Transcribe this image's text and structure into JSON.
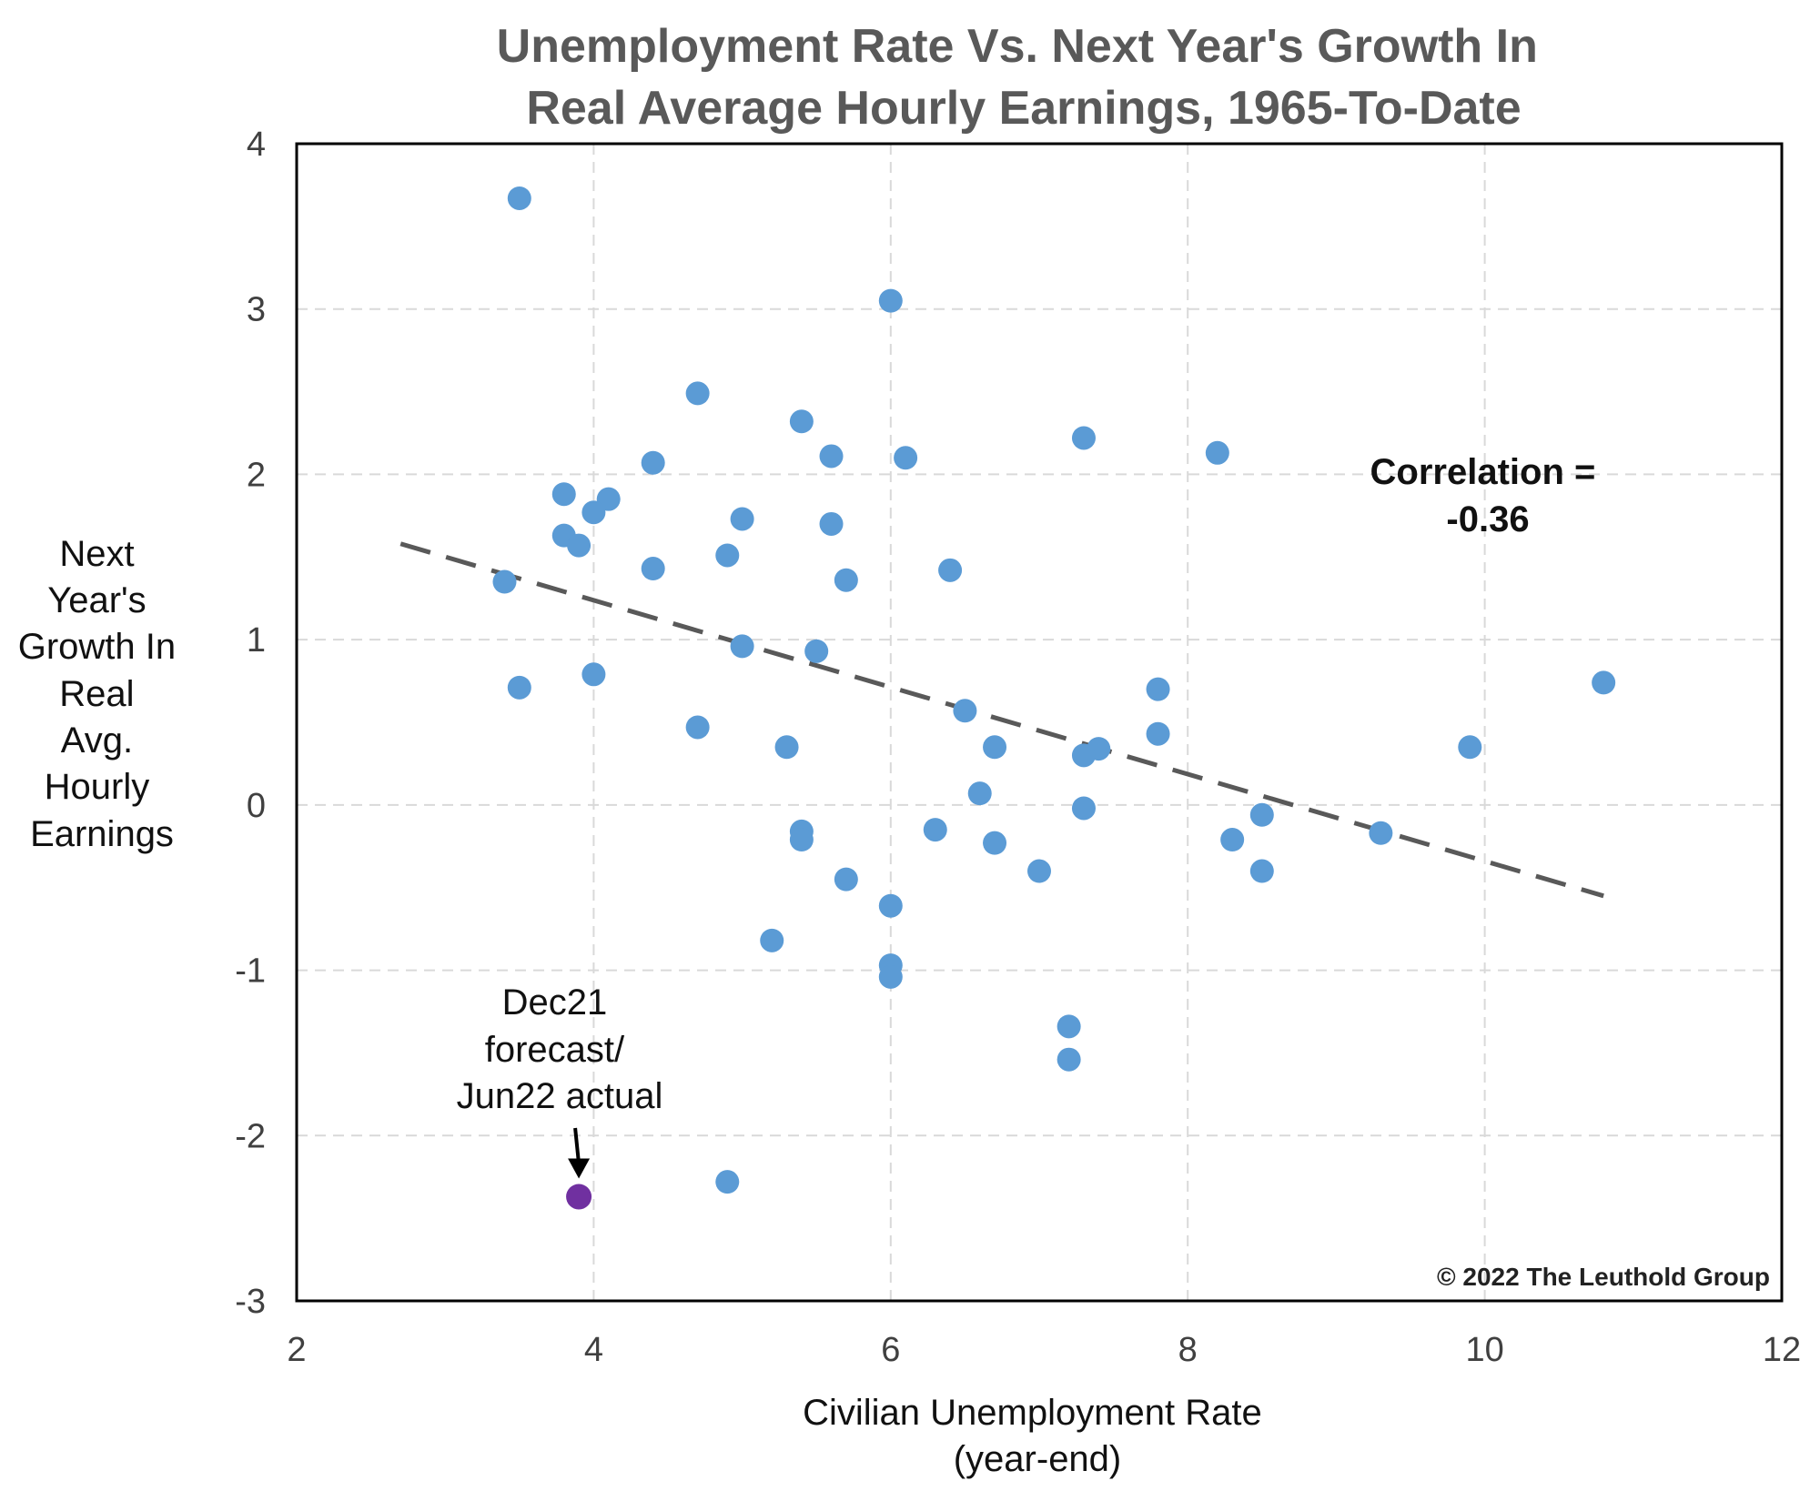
{
  "chart_data": {
    "type": "scatter",
    "title": [
      "Unemployment Rate Vs. Next Year's Growth In",
      "Real Average Hourly Earnings, 1965-To-Date"
    ],
    "xlabel": [
      "Civilian Unemployment Rate",
      "(year-end)"
    ],
    "ylabel": [
      "Next",
      "Year's",
      "Growth In",
      "Real",
      "Avg.",
      "Hourly",
      "Earnings"
    ],
    "xlim": [
      2,
      12
    ],
    "ylim": [
      -3,
      4
    ],
    "xticks": [
      2,
      4,
      6,
      8,
      10,
      12
    ],
    "yticks": [
      -3,
      -2,
      -1,
      0,
      1,
      2,
      3,
      4
    ],
    "grid": true,
    "colors": {
      "points": "#5B9BD5",
      "highlight": "#7030A0",
      "trendline": "#595959",
      "grid": "#D9D9D9"
    },
    "series": [
      {
        "points": [
          {
            "x": 3.5,
            "y": 3.67
          },
          {
            "x": 6.0,
            "y": 3.05
          },
          {
            "x": 4.7,
            "y": 2.49
          },
          {
            "x": 5.4,
            "y": 2.32
          },
          {
            "x": 7.3,
            "y": 2.22
          },
          {
            "x": 8.2,
            "y": 2.13
          },
          {
            "x": 5.6,
            "y": 2.11
          },
          {
            "x": 6.1,
            "y": 2.1
          },
          {
            "x": 4.4,
            "y": 2.07
          },
          {
            "x": 3.8,
            "y": 1.88
          },
          {
            "x": 4.1,
            "y": 1.85
          },
          {
            "x": 4.0,
            "y": 1.77
          },
          {
            "x": 5.0,
            "y": 1.73
          },
          {
            "x": 5.6,
            "y": 1.7
          },
          {
            "x": 3.8,
            "y": 1.63
          },
          {
            "x": 3.9,
            "y": 1.57
          },
          {
            "x": 4.9,
            "y": 1.51
          },
          {
            "x": 4.4,
            "y": 1.43
          },
          {
            "x": 6.4,
            "y": 1.42
          },
          {
            "x": 5.7,
            "y": 1.36
          },
          {
            "x": 3.4,
            "y": 1.35
          },
          {
            "x": 5.0,
            "y": 0.96
          },
          {
            "x": 5.5,
            "y": 0.93
          },
          {
            "x": 4.0,
            "y": 0.79
          },
          {
            "x": 10.8,
            "y": 0.74
          },
          {
            "x": 3.5,
            "y": 0.71
          },
          {
            "x": 7.8,
            "y": 0.7
          },
          {
            "x": 6.5,
            "y": 0.57
          },
          {
            "x": 4.7,
            "y": 0.47
          },
          {
            "x": 7.8,
            "y": 0.43
          },
          {
            "x": 5.3,
            "y": 0.35
          },
          {
            "x": 6.7,
            "y": 0.35
          },
          {
            "x": 9.9,
            "y": 0.35
          },
          {
            "x": 7.4,
            "y": 0.34
          },
          {
            "x": 7.3,
            "y": 0.3
          },
          {
            "x": 6.6,
            "y": 0.07
          },
          {
            "x": 7.3,
            "y": -0.02
          },
          {
            "x": 8.5,
            "y": -0.06
          },
          {
            "x": 6.3,
            "y": -0.15
          },
          {
            "x": 5.4,
            "y": -0.16
          },
          {
            "x": 9.3,
            "y": -0.17
          },
          {
            "x": 5.4,
            "y": -0.21
          },
          {
            "x": 8.3,
            "y": -0.21
          },
          {
            "x": 6.7,
            "y": -0.23
          },
          {
            "x": 7.0,
            "y": -0.4
          },
          {
            "x": 8.5,
            "y": -0.4
          },
          {
            "x": 5.7,
            "y": -0.45
          },
          {
            "x": 6.0,
            "y": -0.61
          },
          {
            "x": 5.2,
            "y": -0.82
          },
          {
            "x": 6.0,
            "y": -0.97
          },
          {
            "x": 6.0,
            "y": -1.04
          },
          {
            "x": 7.2,
            "y": -1.34
          },
          {
            "x": 7.2,
            "y": -1.54
          },
          {
            "x": 4.9,
            "y": -2.28
          }
        ]
      }
    ],
    "highlight_point": {
      "x": 3.9,
      "y": -2.37
    },
    "trendline": {
      "x": [
        2.7,
        10.8
      ],
      "y": [
        1.58,
        -0.55
      ],
      "style": "dashed"
    },
    "annotations": {
      "highlight_label": [
        "Dec21",
        "forecast/",
        "Jun22 actual"
      ],
      "correlation": [
        "Correlation =",
        "-0.36"
      ],
      "copyright": "© 2022 The Leuthold Group"
    }
  }
}
